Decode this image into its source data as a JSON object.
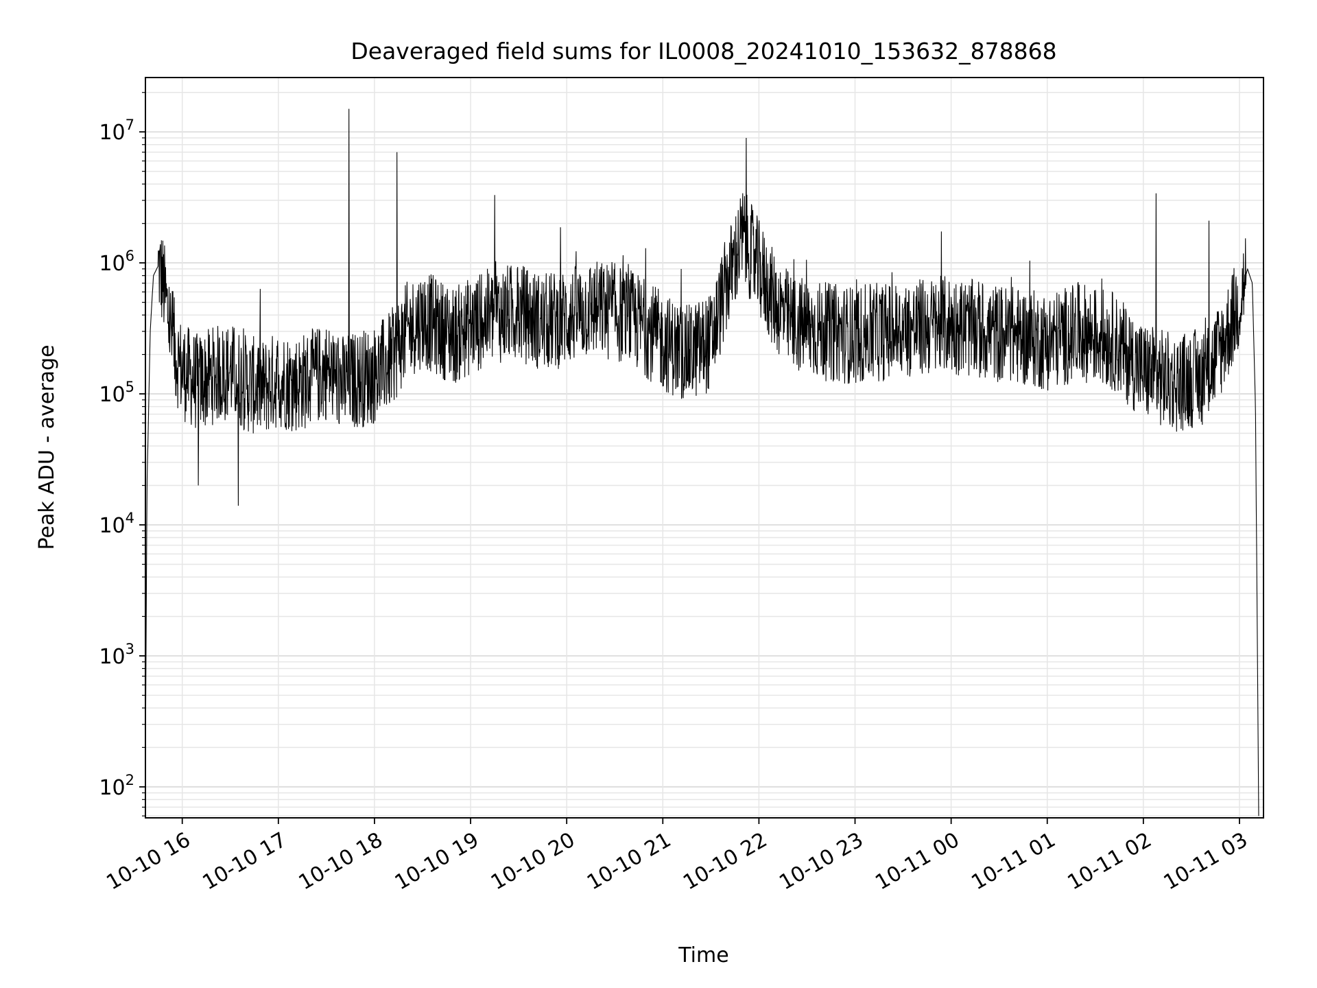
{
  "chart_data": {
    "type": "line",
    "title": "Deaveraged field sums for IL0008_20241010_153632_878868",
    "xlabel": "Time",
    "ylabel": "Peak ADU - average",
    "yscale": "log",
    "ylim": [
      58,
      26000000
    ],
    "xlim": [
      "2024-10-10 15:37",
      "2024-10-11 03:15"
    ],
    "grid": true,
    "line_color": "#000000",
    "x_ticks": [
      {
        "value": "2024-10-10 16:00",
        "label": "10-10 16"
      },
      {
        "value": "2024-10-10 17:00",
        "label": "10-10 17"
      },
      {
        "value": "2024-10-10 18:00",
        "label": "10-10 18"
      },
      {
        "value": "2024-10-10 19:00",
        "label": "10-10 19"
      },
      {
        "value": "2024-10-10 20:00",
        "label": "10-10 20"
      },
      {
        "value": "2024-10-10 21:00",
        "label": "10-10 21"
      },
      {
        "value": "2024-10-10 22:00",
        "label": "10-10 22"
      },
      {
        "value": "2024-10-10 23:00",
        "label": "10-10 23"
      },
      {
        "value": "2024-10-11 00:00",
        "label": "10-11 00"
      },
      {
        "value": "2024-10-11 01:00",
        "label": "10-11 01"
      },
      {
        "value": "2024-10-11 02:00",
        "label": "10-11 02"
      },
      {
        "value": "2024-10-11 03:00",
        "label": "10-11 03"
      }
    ],
    "y_ticks": [
      {
        "value": 100,
        "base": "10",
        "exp": "2"
      },
      {
        "value": 1000,
        "base": "10",
        "exp": "3"
      },
      {
        "value": 10000,
        "base": "10",
        "exp": "4"
      },
      {
        "value": 100000,
        "base": "10",
        "exp": "5"
      },
      {
        "value": 1000000,
        "base": "10",
        "exp": "6"
      },
      {
        "value": 10000000,
        "base": "10",
        "exp": "7"
      }
    ],
    "series": [
      {
        "x": [
          "2024-10-10 15:37",
          "2024-10-10 15:38",
          "2024-10-10 15:40",
          "2024-10-10 15:42",
          "2024-10-10 15:45",
          "2024-10-10 15:48",
          "2024-10-10 15:52",
          "2024-10-10 15:56",
          "2024-10-10 16:00",
          "2024-10-10 16:10",
          "2024-10-10 16:20",
          "2024-10-10 16:30",
          "2024-10-10 16:40",
          "2024-10-10 16:50",
          "2024-10-10 17:00",
          "2024-10-10 17:10",
          "2024-10-10 17:20",
          "2024-10-10 17:30",
          "2024-10-10 17:40",
          "2024-10-10 17:50",
          "2024-10-10 18:00",
          "2024-10-10 18:10",
          "2024-10-10 18:20",
          "2024-10-10 18:30",
          "2024-10-10 18:40",
          "2024-10-10 18:50",
          "2024-10-10 19:00",
          "2024-10-10 19:15",
          "2024-10-10 19:30",
          "2024-10-10 19:45",
          "2024-10-10 20:00",
          "2024-10-10 20:15",
          "2024-10-10 20:30",
          "2024-10-10 20:45",
          "2024-10-10 21:00",
          "2024-10-10 21:15",
          "2024-10-10 21:30",
          "2024-10-10 21:40",
          "2024-10-10 21:50",
          "2024-10-10 22:00",
          "2024-10-10 22:10",
          "2024-10-10 22:20",
          "2024-10-10 22:40",
          "2024-10-10 23:00",
          "2024-10-10 23:20",
          "2024-10-10 23:40",
          "2024-10-11 00:00",
          "2024-10-11 00:20",
          "2024-10-11 00:40",
          "2024-10-11 01:00",
          "2024-10-11 01:20",
          "2024-10-11 01:40",
          "2024-10-11 02:00",
          "2024-10-11 02:20",
          "2024-10-11 02:40",
          "2024-10-11 02:50",
          "2024-10-11 03:00",
          "2024-10-11 03:05",
          "2024-10-11 03:08",
          "2024-10-11 03:10",
          "2024-10-11 03:12"
        ],
        "y": [
          150,
          20000,
          300000,
          800000,
          950000,
          700000,
          350000,
          200000,
          150000,
          120000,
          140000,
          150000,
          120000,
          110000,
          130000,
          120000,
          130000,
          150000,
          120000,
          130000,
          140000,
          180000,
          300000,
          380000,
          320000,
          280000,
          330000,
          400000,
          420000,
          350000,
          380000,
          450000,
          420000,
          350000,
          250000,
          200000,
          250000,
          700000,
          1600000,
          900000,
          500000,
          350000,
          300000,
          280000,
          300000,
          320000,
          340000,
          300000,
          280000,
          250000,
          300000,
          260000,
          150000,
          120000,
          140000,
          250000,
          500000,
          900000,
          700000,
          80000,
          60
        ]
      }
    ],
    "spikes": [
      {
        "x": "2024-10-10 17:44",
        "y": 15000000
      },
      {
        "x": "2024-10-10 18:14",
        "y": 7000000
      },
      {
        "x": "2024-10-10 21:52",
        "y": 9000000
      },
      {
        "x": "2024-10-10 19:15",
        "y": 3300000
      },
      {
        "x": "2024-10-11 02:08",
        "y": 3400000
      },
      {
        "x": "2024-10-11 02:41",
        "y": 2100000
      },
      {
        "x": "2024-10-10 16:35",
        "y": 14000
      },
      {
        "x": "2024-10-10 16:10",
        "y": 20000
      }
    ]
  }
}
